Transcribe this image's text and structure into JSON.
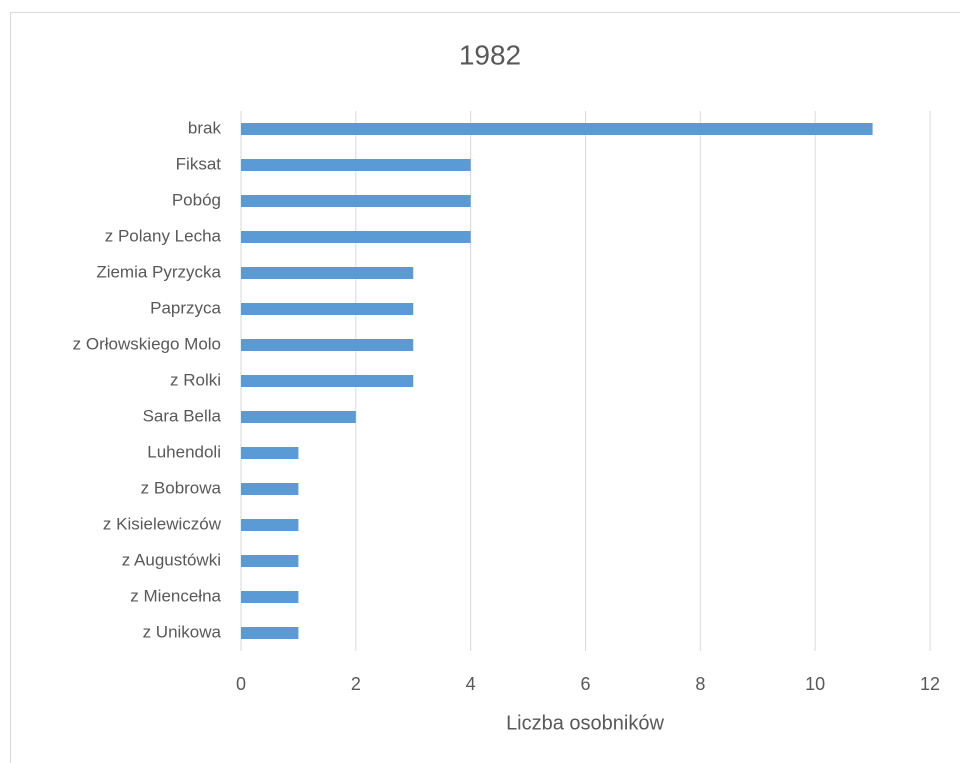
{
  "chart_data": {
    "type": "bar",
    "orientation": "horizontal",
    "title": "1982",
    "x_label": "Liczba osobników",
    "categories": [
      "brak",
      "Fiksat",
      "Pobóg",
      "z Polany Lecha",
      "Ziemia Pyrzycka",
      "Paprzyca",
      "z Orłowskiego Molo",
      "z Rolki",
      "Sara Bella",
      "Luhendoli",
      "z Bobrowa",
      "z Kisielewiczów",
      "z Augustówki",
      "z Miencełna",
      "z Unikowa"
    ],
    "values": [
      11,
      4,
      4,
      4,
      3,
      3,
      3,
      3,
      2,
      1,
      1,
      1,
      1,
      1,
      1
    ],
    "color": "#5b9bd5",
    "xlim": [
      0,
      12
    ],
    "xticks": [
      0,
      2,
      4,
      6,
      8,
      10,
      12
    ],
    "grid": true
  }
}
